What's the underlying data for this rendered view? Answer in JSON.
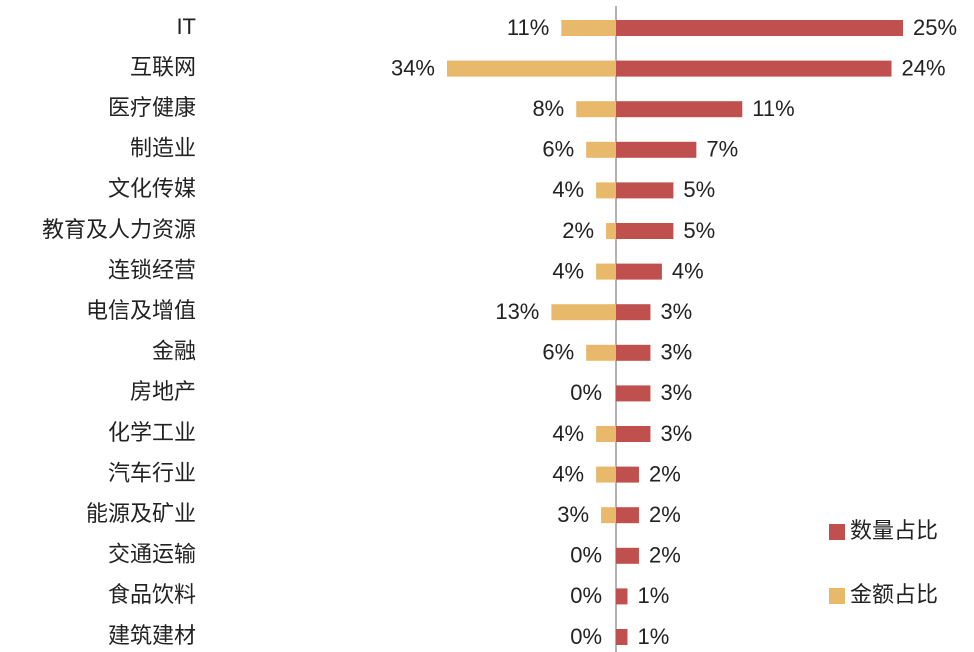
{
  "chart_data": {
    "type": "diverging-bar",
    "categories": [
      "IT",
      "互联网",
      "医疗健康",
      "制造业",
      "文化传媒",
      "教育及人力资源",
      "连锁经营",
      "电信及增值",
      "金融",
      "房地产",
      "化学工业",
      "汽车行业",
      "能源及矿业",
      "交通运输",
      "食品饮料",
      "建筑建材"
    ],
    "series": [
      {
        "name": "数量占比",
        "color": "#c0504d",
        "values": [
          25,
          24,
          11,
          7,
          5,
          5,
          4,
          3,
          3,
          3,
          3,
          2,
          2,
          2,
          1,
          1
        ],
        "value_labels": [
          "25%",
          "24%",
          "11%",
          "7%",
          "5%",
          "5%",
          "4%",
          "3%",
          "3%",
          "3%",
          "3%",
          "2%",
          "2%",
          "2%",
          "1%",
          "1%"
        ]
      },
      {
        "name": "金额占比",
        "color": "#e8b96a",
        "values": [
          11,
          34,
          8,
          6,
          4,
          2,
          4,
          13,
          6,
          0,
          4,
          4,
          3,
          0,
          0,
          0
        ],
        "value_labels": [
          "11%",
          "34%",
          "8%",
          "6%",
          "4%",
          "2%",
          "4%",
          "13%",
          "6%",
          "0%",
          "4%",
          "4%",
          "3%",
          "0%",
          "0%",
          "0%"
        ]
      }
    ]
  }
}
